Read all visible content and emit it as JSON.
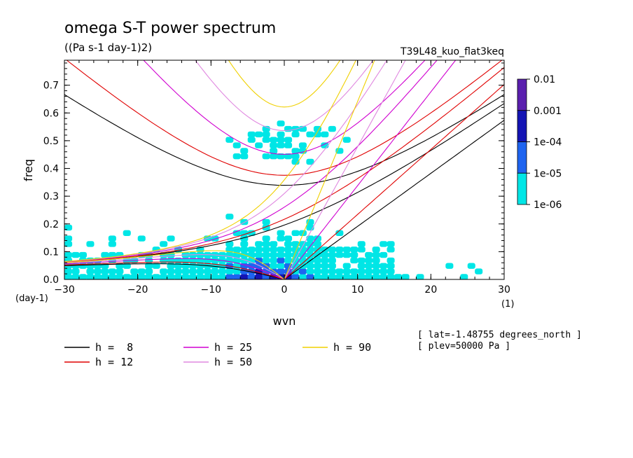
{
  "chart_data": {
    "type": "heatmap",
    "title": "omega S-T power spectrum",
    "subtitle": "((Pa s-1 day-1)2)",
    "run_label": "T39L48_kuo_flat3keq",
    "xlabel": "wvn",
    "ylabel": "freq",
    "x_unit": "(1)",
    "y_unit": "(day-1)",
    "xlim": [
      -30,
      30
    ],
    "ylim": [
      0,
      0.79
    ],
    "x_ticks": [
      "-30",
      "-20",
      "-10",
      "0",
      "10",
      "20",
      "30"
    ],
    "y_ticks": [
      "0.0",
      "0.1",
      "0.2",
      "0.3",
      "0.4",
      "0.5",
      "0.6",
      "0.7"
    ],
    "colorbar": {
      "labels": [
        "0.01",
        "0.001",
        "1e-04",
        "1e-05",
        "1e-06"
      ],
      "colors": [
        "#5a1fae",
        "#1414b4",
        "#1e64f0",
        "#00e6e6"
      ]
    },
    "dispersion_curves": [
      {
        "name": "h =  8",
        "h": 8,
        "color": "#000000"
      },
      {
        "name": "h = 12",
        "h": 12,
        "color": "#e00000"
      },
      {
        "name": "h = 25",
        "h": 25,
        "color": "#d000d0"
      },
      {
        "name": "h = 50",
        "h": 50,
        "color": "#e088e0"
      },
      {
        "name": "h = 90",
        "h": 90,
        "color": "#f0d000"
      }
    ],
    "info": [
      "[ lat=-1.48755 degrees_north ]",
      "[ plev=50000 Pa ]"
    ]
  }
}
